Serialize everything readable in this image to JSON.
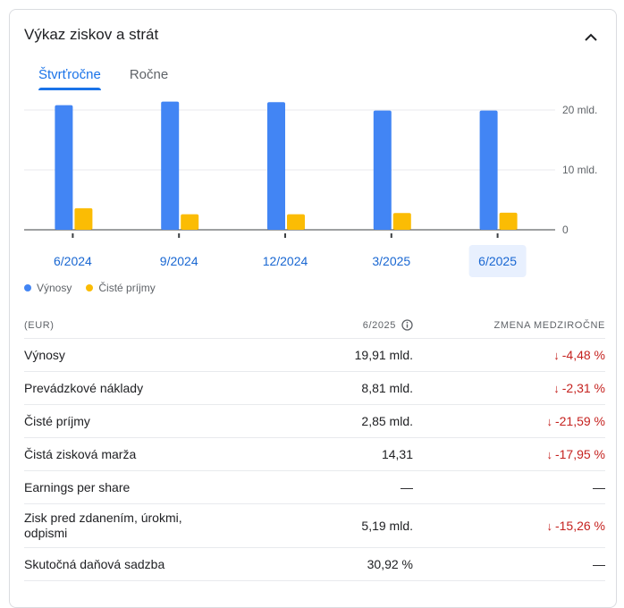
{
  "card": {
    "title": "Výkaz ziskov a strát",
    "collapse_icon": "chevron-up-icon"
  },
  "tabs": [
    {
      "label": "Štvrťročne",
      "active": true
    },
    {
      "label": "Ročne",
      "active": false
    }
  ],
  "chart_data": {
    "type": "bar",
    "categories": [
      "6/2024",
      "9/2024",
      "12/2024",
      "3/2025",
      "6/2025"
    ],
    "series": [
      {
        "name": "Výnosy",
        "color": "#4285f4",
        "values": [
          20.8,
          21.4,
          21.3,
          19.9,
          19.91
        ]
      },
      {
        "name": "Čisté príjmy",
        "color": "#fbbc04",
        "values": [
          3.6,
          2.6,
          2.6,
          2.8,
          2.85
        ]
      }
    ],
    "ylim": [
      0,
      20
    ],
    "yticks": [
      {
        "value": 0,
        "label": "0"
      },
      {
        "value": 10,
        "label": "10 mld."
      },
      {
        "value": 20,
        "label": "20 mld."
      }
    ],
    "selected_category": "6/2025",
    "grid": true
  },
  "legend": [
    {
      "label": "Výnosy",
      "color": "#4285f4"
    },
    {
      "label": "Čisté príjmy",
      "color": "#fbbc04"
    }
  ],
  "table": {
    "header": {
      "currency": "(EUR)",
      "period": "6/2025",
      "period_icon": "info-icon",
      "change": "ZMENA MEDZIROČNE"
    },
    "rows": [
      {
        "label": "Výnosy",
        "value": "19,91 mld.",
        "change": "-4,48 %",
        "direction": "down"
      },
      {
        "label": "Prevádzkové náklady",
        "value": "8,81 mld.",
        "change": "-2,31 %",
        "direction": "down"
      },
      {
        "label": "Čisté príjmy",
        "value": "2,85 mld.",
        "change": "-21,59 %",
        "direction": "down"
      },
      {
        "label": "Čistá zisková marža",
        "value": "14,31",
        "change": "-17,95 %",
        "direction": "down"
      },
      {
        "label": "Earnings per share",
        "value": "—",
        "change": "—",
        "direction": "none"
      },
      {
        "label": "Zisk pred zdanením, úrokmi, odpismi",
        "value": "5,19 mld.",
        "change": "-15,26 %",
        "direction": "down"
      },
      {
        "label": "Skutočná daňová sadzba",
        "value": "30,92 %",
        "change": "—",
        "direction": "none"
      }
    ]
  }
}
